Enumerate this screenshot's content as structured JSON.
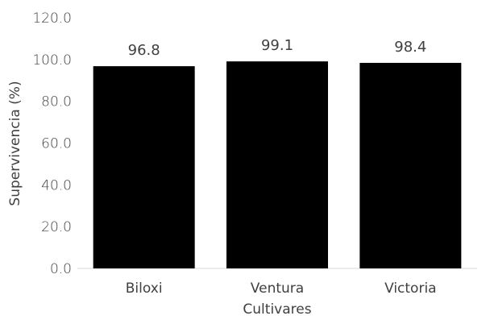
{
  "chart_data": {
    "type": "bar",
    "categories": [
      "Biloxi",
      "Ventura",
      "Victoria"
    ],
    "values": [
      96.8,
      99.1,
      98.4
    ],
    "data_labels": [
      "96.8",
      "99.1",
      "98.4"
    ],
    "title": "",
    "xlabel": "Cultivares",
    "ylabel": "Supervivencia (%)",
    "ylim": [
      0,
      120
    ],
    "yticks": [
      "0.0",
      "20.0",
      "40.0",
      "60.0",
      "80.0",
      "100.0",
      "120.0"
    ],
    "grid": false,
    "legend": "none",
    "colors": {
      "bar": "#000000",
      "axis": "#d9d9d9",
      "text": "#404040"
    }
  }
}
